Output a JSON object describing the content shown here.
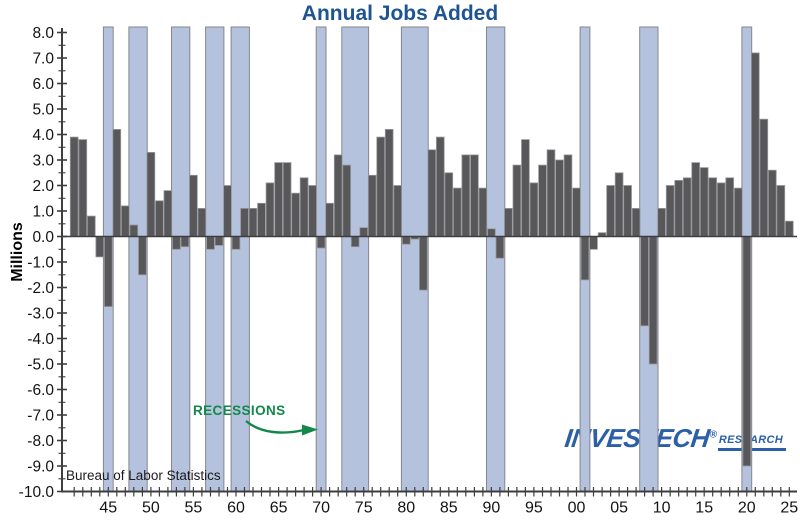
{
  "title": "Annual Jobs Added",
  "y_axis_label": "Millions",
  "source_note": "Bureau of Labor Statistics",
  "annotation": {
    "label": "RECESSIONS"
  },
  "logo": {
    "name_main": "INVESTECH",
    "registered": "®",
    "name_sub": "RESEARCH"
  },
  "colors": {
    "title": "#1e5493",
    "bar_fill": "#58585a",
    "bar_stroke": "#98989b",
    "recession_fill": "#b5c2de",
    "recession_stroke": "#85878c",
    "axis": "#3e3e40",
    "tick_label": "#131313",
    "annotation_green": "#12894b",
    "logo_blue": "#2b5fa7",
    "source_text": "#1a1a1a"
  },
  "chart_data": {
    "type": "bar",
    "title": "Annual Jobs Added",
    "xlabel": "",
    "ylabel": "Millions",
    "ylim": [
      -10,
      8
    ],
    "y_major_tick": 1.0,
    "y_minor_tick": 0.5,
    "grid": false,
    "legend": null,
    "x_start_year": 1941,
    "x_end_year": 2025,
    "x_tick_years": [
      1945,
      1950,
      1955,
      1960,
      1965,
      1970,
      1975,
      1980,
      1985,
      1990,
      1995,
      2000,
      2005,
      2010,
      2015,
      2020,
      2025
    ],
    "x_tick_labels": [
      "45",
      "50",
      "55",
      "60",
      "65",
      "70",
      "75",
      "80",
      "85",
      "90",
      "95",
      "00",
      "05",
      "10",
      "15",
      "20",
      "25"
    ],
    "y_tick_labels": [
      "8.0",
      "7.0",
      "6.0",
      "5.0",
      "4.0",
      "3.0",
      "2.0",
      "1.0",
      "0.0",
      "-1.0",
      "-2.0",
      "-3.0",
      "-4.0",
      "-5.0",
      "-6.0",
      "-7.0",
      "-8.0",
      "-9.0",
      "-10.0"
    ],
    "values": [
      3.9,
      3.8,
      0.8,
      -0.8,
      -2.75,
      4.2,
      1.2,
      0.45,
      -1.5,
      3.3,
      1.4,
      1.8,
      -0.5,
      -0.4,
      2.4,
      1.1,
      -0.5,
      -0.35,
      2.0,
      -0.5,
      1.1,
      1.1,
      1.3,
      2.1,
      2.9,
      2.9,
      1.7,
      2.3,
      2.0,
      -0.45,
      1.3,
      3.2,
      2.8,
      -0.4,
      0.35,
      2.4,
      3.9,
      4.2,
      2.0,
      -0.3,
      -0.1,
      -2.1,
      3.4,
      3.9,
      2.5,
      1.9,
      3.2,
      3.2,
      1.9,
      0.3,
      -0.85,
      1.1,
      2.8,
      3.8,
      2.1,
      2.8,
      3.4,
      3.0,
      3.2,
      1.9,
      -1.7,
      -0.5,
      0.15,
      2.0,
      2.5,
      2.0,
      1.1,
      -3.5,
      -5.0,
      1.1,
      2.0,
      2.2,
      2.3,
      2.9,
      2.7,
      2.3,
      2.1,
      2.3,
      1.9,
      -9.0,
      7.2,
      4.6,
      2.6,
      2.0,
      0.6
    ],
    "recessions": [
      [
        1945,
        1945
      ],
      [
        1948,
        1949
      ],
      [
        1953,
        1954
      ],
      [
        1957,
        1958
      ],
      [
        1960,
        1961
      ],
      [
        1970,
        1970
      ],
      [
        1973,
        1975
      ],
      [
        1980,
        1982
      ],
      [
        1990,
        1991
      ],
      [
        2001,
        2001
      ],
      [
        2008,
        2009
      ],
      [
        2020,
        2020
      ]
    ]
  }
}
